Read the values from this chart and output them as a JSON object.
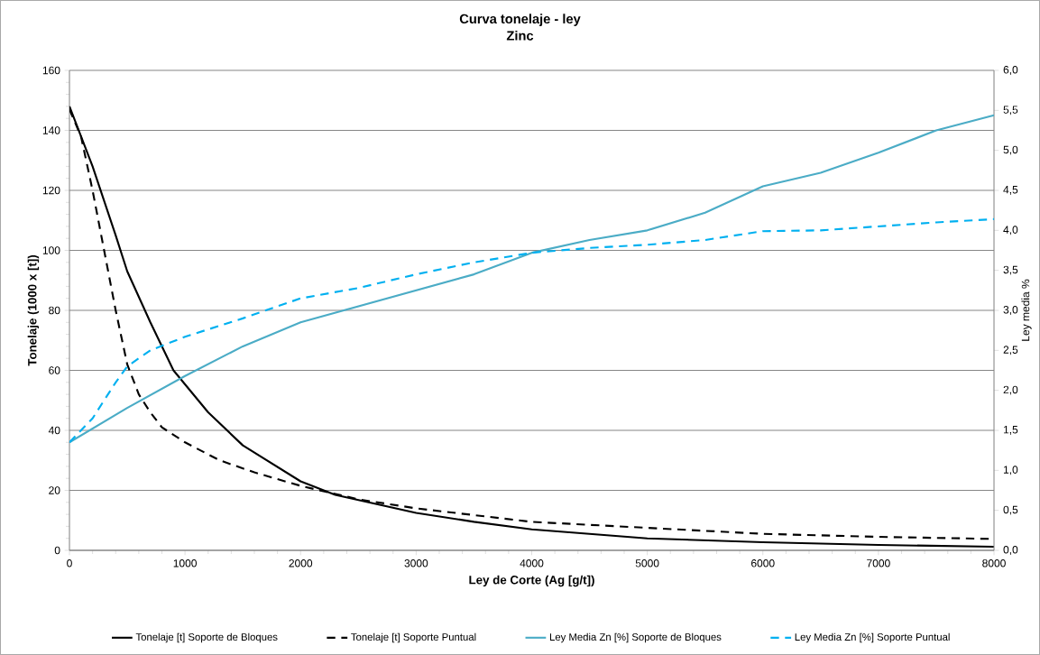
{
  "chart_data": {
    "type": "line",
    "title": "Curva tonelaje - ley",
    "subtitle": "Zinc",
    "xlabel": "Ley de Corte (Ag [g/t])",
    "ylabel": "Tonelaje (1000 x [t])",
    "y2label": "Ley media %",
    "xlim": [
      0,
      8000
    ],
    "xticks": [
      0,
      1000,
      2000,
      3000,
      4000,
      5000,
      6000,
      7000,
      8000
    ],
    "ylim": [
      0,
      160
    ],
    "yticks": [
      0,
      20,
      40,
      60,
      80,
      100,
      120,
      140,
      160
    ],
    "y2lim": [
      0,
      6
    ],
    "y2ticks": [
      {
        "value": 0,
        "label": "0,0"
      },
      {
        "value": 0.5,
        "label": "0,5"
      },
      {
        "value": 1,
        "label": "1,0"
      },
      {
        "value": 1.5,
        "label": "1,5"
      },
      {
        "value": 2,
        "label": "2,0"
      },
      {
        "value": 2.5,
        "label": "2,5"
      },
      {
        "value": 3,
        "label": "3,0"
      },
      {
        "value": 3.5,
        "label": "3,5"
      },
      {
        "value": 4,
        "label": "4,0"
      },
      {
        "value": 4.5,
        "label": "4,5"
      },
      {
        "value": 5,
        "label": "5,0"
      },
      {
        "value": 5.5,
        "label": "5,5"
      },
      {
        "value": 6,
        "label": "6,0"
      }
    ],
    "grid": "y",
    "legend": "bottom",
    "marker": "none",
    "series": [
      {
        "name": "Tonelaje [t] Soporte de Bloques",
        "color": "#000000",
        "line_style": "solid",
        "x": [
          0,
          200,
          400,
          500,
          700,
          900,
          1200,
          1500,
          2000,
          2300,
          3000,
          3500,
          4000,
          4500,
          5000,
          6000,
          7000,
          8000
        ],
        "values": [
          148,
          128,
          105,
          93,
          76,
          60,
          46,
          35,
          23,
          18.5,
          12.5,
          9.5,
          7,
          5.5,
          4,
          2.7,
          1.8,
          1.2
        ]
      },
      {
        "name": "Tonelaje [t] Soporte Puntual",
        "color": "#000000",
        "line_style": "dashed",
        "x": [
          0,
          100,
          200,
          300,
          400,
          500,
          600,
          700,
          800,
          1000,
          1300,
          1600,
          2000,
          2500,
          3000,
          4000,
          5000,
          6000,
          7000,
          8000
        ],
        "values": [
          147,
          138,
          120,
          100,
          80,
          62,
          52,
          46,
          41,
          36,
          30,
          26,
          21.5,
          17,
          14,
          9.5,
          7.5,
          5.5,
          4.5,
          3.8
        ]
      },
      {
        "name": "Ley Media Zn [%] Soporte de Bloques",
        "color": "#4bacc6",
        "line_style": "solid",
        "axis": "y2",
        "x": [
          0,
          500,
          1000,
          1500,
          2000,
          2500,
          3000,
          3500,
          4000,
          4500,
          5000,
          5500,
          6000,
          6500,
          7000,
          7500,
          8000
        ],
        "values": [
          1.35,
          1.78,
          2.18,
          2.55,
          2.85,
          3.05,
          3.25,
          3.45,
          3.72,
          3.88,
          4.0,
          4.22,
          4.55,
          4.72,
          4.97,
          5.25,
          5.44
        ]
      },
      {
        "name": "Ley Media Zn [%] Soporte Puntual",
        "color": "#00b0f0",
        "line_style": "dashed",
        "axis": "y2",
        "x": [
          0,
          200,
          400,
          500,
          700,
          1000,
          1500,
          2000,
          2500,
          3000,
          3500,
          4000,
          4500,
          5000,
          5500,
          6000,
          6500,
          7000,
          7500,
          8000
        ],
        "values": [
          1.35,
          1.65,
          2.1,
          2.3,
          2.5,
          2.67,
          2.9,
          3.15,
          3.28,
          3.45,
          3.6,
          3.72,
          3.78,
          3.82,
          3.88,
          3.99,
          4.0,
          4.05,
          4.1,
          4.14
        ]
      }
    ]
  }
}
